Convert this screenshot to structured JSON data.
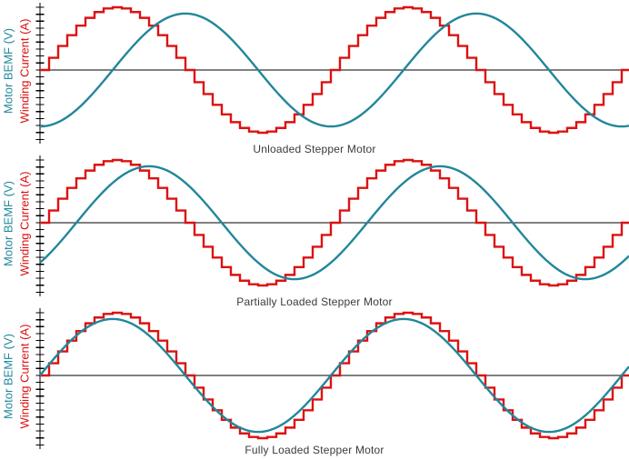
{
  "figure": {
    "background": "#ffffff",
    "axis_color": "#000000",
    "caption_color": "#3a3a3a"
  },
  "axis_labels": {
    "bemf": "Motor BEMF (V)",
    "current": "Winding Current (A)"
  },
  "colors": {
    "bemf": "#21879a",
    "current": "#dd1111",
    "axis": "#000000"
  },
  "chart_data": [
    {
      "type": "line",
      "title": "Unloaded Stepper Motor",
      "xlabel": "",
      "ylabel_left": [
        "Motor BEMF (V)",
        "Winding Current (A)"
      ],
      "x_visible_cycles": 2.03,
      "grid": false,
      "zero_line": true,
      "bemf_lag_deg": 90,
      "series": [
        {
          "name": "Winding Current (A)",
          "waveform": "stepped-sine",
          "steps_per_cycle": 32,
          "amplitude": 1.0,
          "phase_deg": 0,
          "color_key": "current"
        },
        {
          "name": "Motor BEMF (V)",
          "waveform": "sine",
          "amplitude": 0.9,
          "phase_deg": -90,
          "color_key": "bemf"
        }
      ]
    },
    {
      "type": "line",
      "title": "Partially Loaded Stepper Motor",
      "xlabel": "",
      "ylabel_left": [
        "Motor BEMF (V)",
        "Winding Current (A)"
      ],
      "x_visible_cycles": 2.03,
      "grid": false,
      "zero_line": true,
      "bemf_lag_deg": 45,
      "series": [
        {
          "name": "Winding Current (A)",
          "waveform": "stepped-sine",
          "steps_per_cycle": 32,
          "amplitude": 1.0,
          "phase_deg": 0,
          "color_key": "current"
        },
        {
          "name": "Motor BEMF (V)",
          "waveform": "sine",
          "amplitude": 0.9,
          "phase_deg": -45,
          "color_key": "bemf"
        }
      ]
    },
    {
      "type": "line",
      "title": "Fully Loaded Stepper Motor",
      "xlabel": "",
      "ylabel_left": [
        "Motor BEMF (V)",
        "Winding Current (A)"
      ],
      "x_visible_cycles": 2.03,
      "grid": false,
      "zero_line": true,
      "bemf_lag_deg": 0,
      "series": [
        {
          "name": "Winding Current (A)",
          "waveform": "stepped-sine",
          "steps_per_cycle": 32,
          "amplitude": 1.0,
          "phase_deg": 0,
          "color_key": "current"
        },
        {
          "name": "Motor BEMF (V)",
          "waveform": "sine",
          "amplitude": 0.9,
          "phase_deg": 0,
          "color_key": "bemf"
        }
      ]
    }
  ]
}
